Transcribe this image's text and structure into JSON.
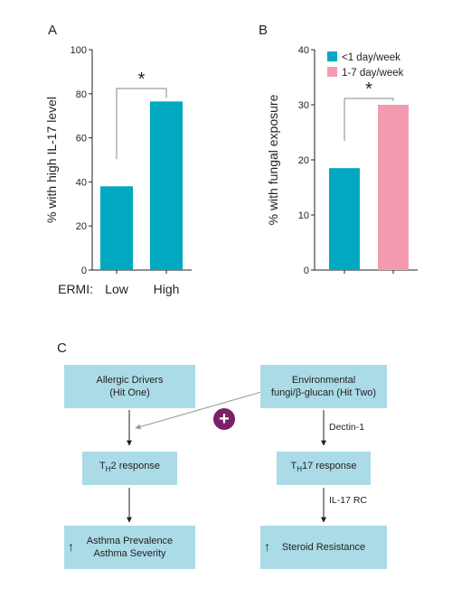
{
  "panels": {
    "a": "A",
    "b": "B",
    "c": "C"
  },
  "chart_data": [
    {
      "type": "bar",
      "panel": "A",
      "categories": [
        "Low",
        "High"
      ],
      "category_prefix": "ERMI:",
      "values": [
        38,
        76.5
      ],
      "ylabel": "% with high IL-17 level",
      "ylim": [
        0,
        100
      ],
      "yticks": [
        "0",
        "20",
        "40",
        "60",
        "80",
        "100"
      ],
      "colors": [
        "#00a9c0",
        "#00a9c0"
      ],
      "significance": "*"
    },
    {
      "type": "bar",
      "panel": "B",
      "categories": [
        "",
        ""
      ],
      "values": [
        18.5,
        30
      ],
      "ylabel": "% with fungal exposure",
      "ylim": [
        0,
        40
      ],
      "yticks": [
        "0",
        "10",
        "20",
        "30",
        "40"
      ],
      "colors": [
        "#00a9c0",
        "#f29bb1"
      ],
      "legend": [
        {
          "name": "<1 day/week",
          "color": "#00a9c0"
        },
        {
          "name": "1-7 day/week",
          "color": "#f29bb1"
        }
      ],
      "legend_position": "top-right",
      "significance": "*"
    }
  ],
  "diagram": {
    "box_allergic": "Allergic Drivers\n(Hit One)",
    "box_environmental": "Environmental\nfungi/β-glucan (Hit Two)",
    "box_th2_pre": "T",
    "box_th2_sub": "H",
    "box_th2_post": "2 response",
    "box_th17_pre": "T",
    "box_th17_sub": "H",
    "box_th17_post": "17 response",
    "box_asthma": "Asthma Prevalence\nAsthma Severity",
    "box_steroid": "Steroid Resistance",
    "label_dectin": "Dectin-1",
    "label_il17rc": "IL-17 RC",
    "plus_symbol": "+",
    "up_arrow": "↑",
    "box_color": "#aadbe6",
    "plus_color": "#7b2067"
  }
}
